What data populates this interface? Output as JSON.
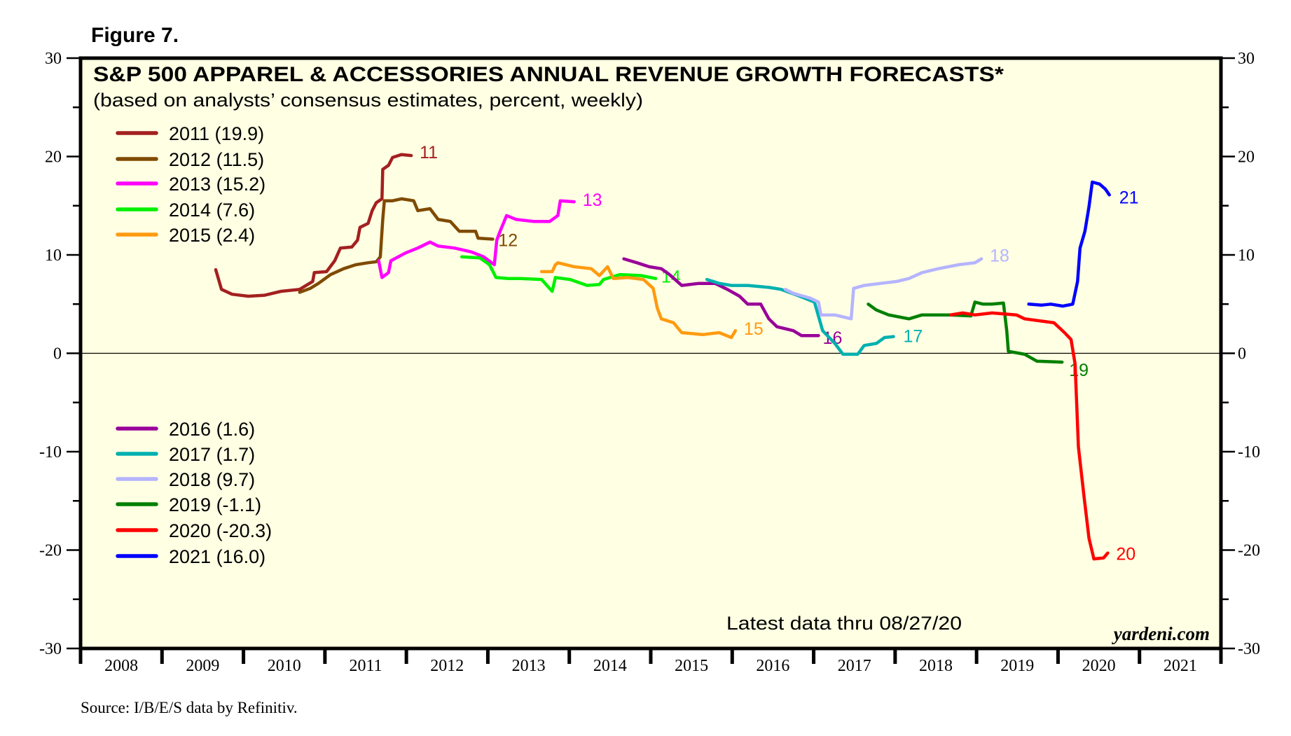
{
  "figure_label": "Figure 7.",
  "source": "Source: I/B/E/S data by Refinitiv.",
  "chart_data": {
    "type": "line",
    "title": "S&P 500 APPAREL & ACCESSORIES ANNUAL REVENUE GROWTH FORECASTS*",
    "subtitle": "(based on analysts’ consensus estimates, percent, weekly)",
    "annotation": "Latest data thru 08/27/20",
    "watermark": "yardeni.com",
    "xlabel": "",
    "ylabel": "",
    "xlim": [
      2008,
      2022
    ],
    "ylim": [
      -30,
      30
    ],
    "x_tick_labels": [
      "2008",
      "2009",
      "2010",
      "2011",
      "2012",
      "2013",
      "2014",
      "2015",
      "2016",
      "2017",
      "2018",
      "2019",
      "2020",
      "2021"
    ],
    "y_tick_labels_left": [
      "30",
      "20",
      "10",
      "0",
      "-10",
      "-20",
      "-30"
    ],
    "y_tick_labels_right": [
      "30",
      "20",
      "10",
      "0",
      "-10",
      "-20",
      "-30"
    ],
    "y_tick_values": [
      30,
      20,
      10,
      0,
      -10,
      -20,
      -30
    ],
    "grid": false,
    "zero_line": true,
    "series": [
      {
        "name": "2011 (19.9)",
        "end_label": "11",
        "color": "#A32020",
        "x": [
          2009.66,
          2009.73,
          2009.86,
          2010.06,
          2010.26,
          2010.46,
          2010.69,
          2010.85,
          2010.87,
          2011.02,
          2011.12,
          2011.19,
          2011.33,
          2011.4,
          2011.43,
          2011.53,
          2011.58,
          2011.63,
          2011.7,
          2011.71,
          2011.78,
          2011.83,
          2011.94,
          2012.06
        ],
        "y": [
          8.5,
          6.5,
          6.0,
          5.8,
          5.9,
          6.3,
          6.5,
          7.3,
          8.2,
          8.3,
          9.4,
          10.7,
          10.8,
          11.5,
          12.8,
          13.2,
          14.5,
          15.3,
          15.7,
          18.7,
          19.1,
          19.9,
          20.2,
          20.1
        ]
      },
      {
        "name": "2012 (11.5)",
        "end_label": "12",
        "color": "#7F4A00",
        "x": [
          2010.69,
          2010.82,
          2010.92,
          2011.07,
          2011.23,
          2011.38,
          2011.53,
          2011.63,
          2011.68,
          2011.71,
          2011.73,
          2011.83,
          2011.94,
          2012.09,
          2012.14,
          2012.29,
          2012.39,
          2012.54,
          2012.65,
          2012.85,
          2012.88,
          2013.06
        ],
        "y": [
          6.2,
          6.6,
          7.1,
          8.0,
          8.6,
          9.0,
          9.2,
          9.3,
          9.8,
          13.6,
          15.5,
          15.5,
          15.7,
          15.5,
          14.5,
          14.7,
          13.6,
          13.4,
          12.4,
          12.4,
          11.7,
          11.6
        ]
      },
      {
        "name": "2013 (15.2)",
        "end_label": "13",
        "color": "#FF00FF",
        "x": [
          2011.66,
          2011.7,
          2011.78,
          2011.81,
          2011.99,
          2012.14,
          2012.29,
          2012.39,
          2012.59,
          2012.8,
          2012.95,
          2013.08,
          2013.11,
          2013.15,
          2013.23,
          2013.35,
          2013.56,
          2013.76,
          2013.86,
          2013.89,
          2014.06
        ],
        "y": [
          9.4,
          7.7,
          8.2,
          9.4,
          10.2,
          10.7,
          11.3,
          10.9,
          10.7,
          10.3,
          9.8,
          9.0,
          11.5,
          12.4,
          14.0,
          13.6,
          13.4,
          13.4,
          14.0,
          15.5,
          15.4
        ]
      },
      {
        "name": "2014 (7.6)",
        "end_label": "14",
        "color": "#00F000",
        "x": [
          2012.68,
          2012.9,
          2013.02,
          2013.1,
          2013.25,
          2013.4,
          2013.66,
          2013.79,
          2013.83,
          2014.01,
          2014.22,
          2014.37,
          2014.42,
          2014.62,
          2014.88,
          2015.06
        ],
        "y": [
          9.8,
          9.7,
          9.0,
          7.7,
          7.6,
          7.6,
          7.5,
          6.3,
          7.7,
          7.5,
          6.9,
          7.0,
          7.5,
          8.0,
          7.9,
          7.6
        ]
      },
      {
        "name": "2015 (2.4)",
        "end_label": "15",
        "color": "#FF9A10",
        "x": [
          2013.66,
          2013.79,
          2013.83,
          2013.86,
          2014.06,
          2014.27,
          2014.37,
          2014.47,
          2014.54,
          2014.72,
          2014.91,
          2015.03,
          2015.08,
          2015.13,
          2015.28,
          2015.38,
          2015.64,
          2015.84,
          2015.99,
          2016.04
        ],
        "y": [
          8.3,
          8.3,
          9.0,
          9.2,
          8.8,
          8.6,
          7.9,
          8.8,
          7.6,
          7.7,
          7.5,
          6.6,
          4.6,
          3.5,
          3.1,
          2.1,
          1.9,
          2.1,
          1.6,
          2.3
        ]
      },
      {
        "name": "2016 (1.6)",
        "end_label": "16",
        "color": "#990099",
        "x": [
          2014.67,
          2014.83,
          2014.98,
          2015.13,
          2015.23,
          2015.38,
          2015.59,
          2015.79,
          2015.94,
          2016.09,
          2016.19,
          2016.35,
          2016.45,
          2016.55,
          2016.75,
          2016.85,
          2017.06
        ],
        "y": [
          9.6,
          9.2,
          8.8,
          8.6,
          8.0,
          6.9,
          7.1,
          7.1,
          6.5,
          5.8,
          5.0,
          5.0,
          3.5,
          2.7,
          2.3,
          1.8,
          1.8
        ]
      },
      {
        "name": "2017 (1.7)",
        "end_label": "17",
        "color": "#00B0B0",
        "x": [
          2015.69,
          2015.84,
          2015.99,
          2016.19,
          2016.45,
          2016.6,
          2016.8,
          2017.01,
          2017.11,
          2017.26,
          2017.36,
          2017.54,
          2017.62,
          2017.77,
          2017.87,
          2017.98
        ],
        "y": [
          7.5,
          7.1,
          6.9,
          6.9,
          6.7,
          6.5,
          5.9,
          5.2,
          2.3,
          1.0,
          -0.1,
          -0.1,
          0.8,
          1.0,
          1.6,
          1.7
        ]
      },
      {
        "name": "2018 (9.7)",
        "end_label": "18",
        "color": "#B4B4FF",
        "x": [
          2016.65,
          2016.75,
          2016.96,
          2017.06,
          2017.09,
          2017.26,
          2017.46,
          2017.49,
          2017.62,
          2017.82,
          2018.02,
          2018.17,
          2018.33,
          2018.53,
          2018.78,
          2018.98,
          2019.06
        ],
        "y": [
          6.5,
          6.1,
          5.6,
          5.2,
          3.9,
          3.9,
          3.5,
          6.6,
          6.9,
          7.1,
          7.3,
          7.6,
          8.2,
          8.6,
          9.0,
          9.2,
          9.6
        ]
      },
      {
        "name": "2019 (-1.1)",
        "end_label": "19",
        "color": "#008000",
        "x": [
          2017.67,
          2017.77,
          2017.92,
          2018.17,
          2018.33,
          2018.68,
          2018.93,
          2018.98,
          2019.08,
          2019.19,
          2019.33,
          2019.37,
          2019.39,
          2019.59,
          2019.74,
          2020.05
        ],
        "y": [
          5.0,
          4.4,
          3.9,
          3.5,
          3.9,
          3.9,
          3.8,
          5.2,
          5.0,
          5.0,
          5.1,
          2.3,
          0.2,
          -0.1,
          -0.8,
          -0.9
        ]
      },
      {
        "name": "2020 (-20.3)",
        "end_label": "20",
        "color": "#FF0000",
        "x": [
          2018.68,
          2018.83,
          2018.98,
          2019.19,
          2019.49,
          2019.59,
          2019.95,
          2020.08,
          2020.16,
          2020.21,
          2020.25,
          2020.32,
          2020.38,
          2020.44,
          2020.56,
          2020.61
        ],
        "y": [
          3.9,
          4.1,
          3.9,
          4.1,
          3.9,
          3.5,
          3.1,
          2.1,
          1.4,
          -1.1,
          -9.5,
          -14.6,
          -18.8,
          -20.9,
          -20.8,
          -20.3
        ]
      },
      {
        "name": "2021 (16.0)",
        "end_label": "21",
        "color": "#0000FF",
        "x": [
          2019.64,
          2019.8,
          2019.91,
          2020.06,
          2020.18,
          2020.24,
          2020.27,
          2020.33,
          2020.38,
          2020.42,
          2020.51,
          2020.58,
          2020.63
        ],
        "y": [
          5.0,
          4.9,
          5.0,
          4.8,
          5.0,
          7.3,
          10.7,
          12.4,
          14.9,
          17.4,
          17.2,
          16.7,
          16.1
        ]
      }
    ]
  }
}
